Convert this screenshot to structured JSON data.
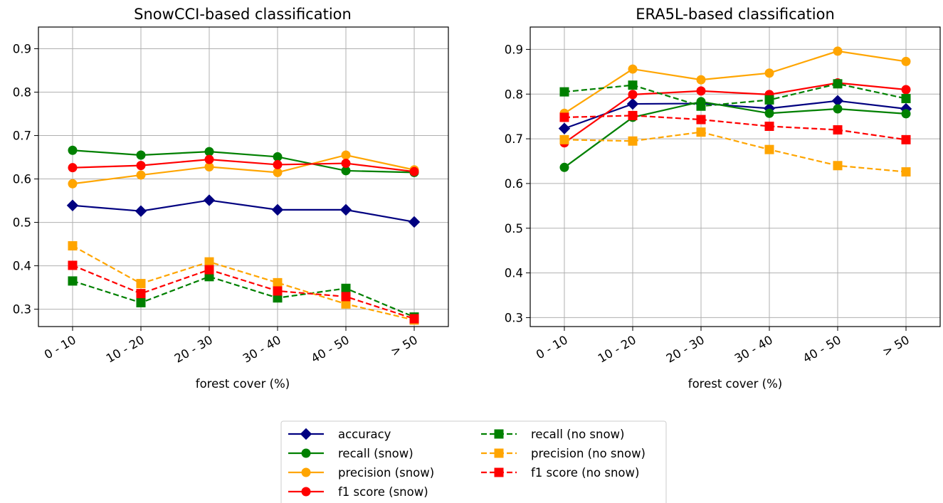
{
  "legend": {
    "items": [
      {
        "label": "accuracy",
        "color": "#000080",
        "marker": "diamond",
        "dash": false
      },
      {
        "label": "recall (snow)",
        "color": "#008000",
        "marker": "circle",
        "dash": false
      },
      {
        "label": "precision (snow)",
        "color": "#FFA500",
        "marker": "circle",
        "dash": false
      },
      {
        "label": "f1 score (snow)",
        "color": "#FF0000",
        "marker": "circle",
        "dash": false
      },
      {
        "label": "recall (no snow)",
        "color": "#008000",
        "marker": "square",
        "dash": true
      },
      {
        "label": "precision (no snow)",
        "color": "#FFA500",
        "marker": "square",
        "dash": true
      },
      {
        "label": "f1 score (no snow)",
        "color": "#FF0000",
        "marker": "square",
        "dash": true
      }
    ]
  },
  "chart_data": [
    {
      "type": "line",
      "title": "SnowCCI-based classification",
      "xlabel": "forest cover (%)",
      "ylabel": "",
      "categories": [
        "0 - 10",
        "10 - 20",
        "20 - 30",
        "30 - 40",
        "40 - 50",
        "> 50"
      ],
      "ylim": [
        0.26,
        0.95
      ],
      "yticks": [
        "0.3",
        "0.4",
        "0.5",
        "0.6",
        "0.7",
        "0.8",
        "0.9"
      ],
      "grid": true,
      "series": [
        {
          "name": "accuracy",
          "values": [
            0.539,
            0.526,
            0.551,
            0.529,
            0.529,
            0.501
          ]
        },
        {
          "name": "recall (snow)",
          "values": [
            0.666,
            0.655,
            0.663,
            0.651,
            0.619,
            0.615
          ]
        },
        {
          "name": "precision (snow)",
          "values": [
            0.589,
            0.609,
            0.628,
            0.615,
            0.655,
            0.621
          ]
        },
        {
          "name": "f1 score (snow)",
          "values": [
            0.626,
            0.631,
            0.645,
            0.633,
            0.636,
            0.617
          ]
        },
        {
          "name": "recall (no snow)",
          "values": [
            0.365,
            0.315,
            0.375,
            0.326,
            0.348,
            0.282
          ]
        },
        {
          "name": "precision (no snow)",
          "values": [
            0.446,
            0.359,
            0.409,
            0.361,
            0.312,
            0.275
          ]
        },
        {
          "name": "f1 score (no snow)",
          "values": [
            0.401,
            0.336,
            0.391,
            0.342,
            0.329,
            0.278
          ]
        }
      ]
    },
    {
      "type": "line",
      "title": "ERA5L-based classification",
      "xlabel": "forest cover (%)",
      "ylabel": "",
      "categories": [
        "0 - 10",
        "10 - 20",
        "20 - 30",
        "30 - 40",
        "40 - 50",
        "> 50"
      ],
      "ylim": [
        0.28,
        0.95
      ],
      "yticks": [
        "0.3",
        "0.4",
        "0.5",
        "0.6",
        "0.7",
        "0.8",
        "0.9"
      ],
      "grid": true,
      "series": [
        {
          "name": "accuracy",
          "values": [
            0.723,
            0.778,
            0.779,
            0.768,
            0.785,
            0.767
          ]
        },
        {
          "name": "recall (snow)",
          "values": [
            0.636,
            0.748,
            0.783,
            0.757,
            0.767,
            0.756
          ]
        },
        {
          "name": "precision (snow)",
          "values": [
            0.757,
            0.856,
            0.832,
            0.847,
            0.896,
            0.873
          ]
        },
        {
          "name": "f1 score (snow)",
          "values": [
            0.691,
            0.799,
            0.807,
            0.799,
            0.825,
            0.81
          ]
        },
        {
          "name": "recall (no snow)",
          "values": [
            0.805,
            0.82,
            0.773,
            0.787,
            0.823,
            0.79
          ]
        },
        {
          "name": "precision (no snow)",
          "values": [
            0.698,
            0.695,
            0.715,
            0.676,
            0.64,
            0.626
          ]
        },
        {
          "name": "f1 score (no snow)",
          "values": [
            0.748,
            0.752,
            0.743,
            0.728,
            0.72,
            0.698
          ]
        }
      ]
    }
  ]
}
